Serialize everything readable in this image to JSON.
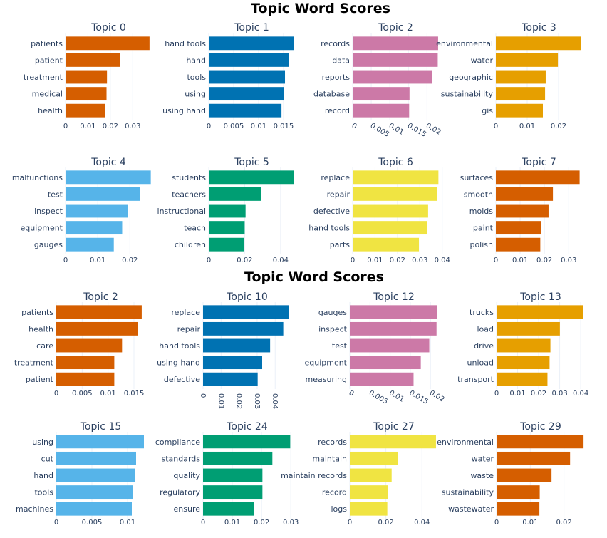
{
  "chart_data": [
    {
      "title": "Topic Word Scores",
      "panels": [
        {
          "type": "bar",
          "orientation": "horizontal",
          "title": "Topic 0",
          "color": "#D55E00",
          "categories": [
            "patients",
            "patient",
            "treatment",
            "medical",
            "health"
          ],
          "values": [
            0.0375,
            0.0245,
            0.0185,
            0.0183,
            0.0175
          ],
          "xlim": [
            0,
            0.0385
          ],
          "ticks": [
            0,
            0.01,
            0.02,
            0.03
          ],
          "tick_labels": [
            "0",
            "0.01",
            "0.02",
            "0.03"
          ],
          "tick_rotation": 0
        },
        {
          "type": "bar",
          "orientation": "horizontal",
          "title": "Topic 1",
          "color": "#0072B2",
          "categories": [
            "hand tools",
            "hand",
            "tools",
            "using",
            "using hand"
          ],
          "values": [
            0.0171,
            0.0161,
            0.0153,
            0.0151,
            0.0146
          ],
          "xlim": [
            0,
            0.0173
          ],
          "ticks": [
            0,
            0.005,
            0.01,
            0.015
          ],
          "tick_labels": [
            "0",
            "0.005",
            "0.01",
            "0.015"
          ],
          "tick_rotation": 0
        },
        {
          "type": "bar",
          "orientation": "horizontal",
          "title": "Topic 2",
          "color": "#CC79A7",
          "categories": [
            "records",
            "data",
            "reports",
            "database",
            "record"
          ],
          "values": [
            0.023,
            0.0229,
            0.0213,
            0.0153,
            0.0152
          ],
          "xlim": [
            0,
            0.0232
          ],
          "ticks": [
            0,
            0.005,
            0.01,
            0.015,
            0.02
          ],
          "tick_labels": [
            "0",
            "0.005",
            "0.01",
            "0.015",
            "0.02"
          ],
          "tick_rotation": 30
        },
        {
          "type": "bar",
          "orientation": "horizontal",
          "title": "Topic 3",
          "color": "#E69F00",
          "categories": [
            "environmental",
            "water",
            "geographic",
            "sustainability",
            "gis"
          ],
          "values": [
            0.0272,
            0.0198,
            0.0159,
            0.0157,
            0.015
          ],
          "xlim": [
            0,
            0.0275
          ],
          "ticks": [
            0,
            0.01,
            0.02
          ],
          "tick_labels": [
            "0",
            "0.01",
            "0.02"
          ],
          "tick_rotation": 0
        },
        {
          "type": "bar",
          "orientation": "horizontal",
          "title": "Topic 4",
          "color": "#56B4E9",
          "categories": [
            "malfunctions",
            "test",
            "inspect",
            "equipment",
            "gauges"
          ],
          "values": [
            0.0265,
            0.0232,
            0.0193,
            0.0176,
            0.015
          ],
          "xlim": [
            0,
            0.0268
          ],
          "ticks": [
            0,
            0.01,
            0.02
          ],
          "tick_labels": [
            "0",
            "0.01",
            "0.02"
          ],
          "tick_rotation": 0
        },
        {
          "type": "bar",
          "orientation": "horizontal",
          "title": "Topic 5",
          "color": "#009E73",
          "categories": [
            "students",
            "teachers",
            "instructional",
            "teach",
            "children"
          ],
          "values": [
            0.0475,
            0.0293,
            0.0205,
            0.02,
            0.0195
          ],
          "xlim": [
            0,
            0.048
          ],
          "ticks": [
            0,
            0.02,
            0.04
          ],
          "tick_labels": [
            "0",
            "0.02",
            "0.04"
          ],
          "tick_rotation": 0
        },
        {
          "type": "bar",
          "orientation": "horizontal",
          "title": "Topic 6",
          "color": "#F0E442",
          "categories": [
            "replace",
            "repair",
            "defective",
            "hand tools",
            "parts"
          ],
          "values": [
            0.0383,
            0.0378,
            0.0337,
            0.0334,
            0.0296
          ],
          "xlim": [
            0,
            0.0385
          ],
          "ticks": [
            0,
            0.01,
            0.02,
            0.03,
            0.04
          ],
          "tick_labels": [
            "0",
            "0.01",
            "0.02",
            "0.03",
            "0.04"
          ],
          "tick_rotation": 0
        },
        {
          "type": "bar",
          "orientation": "horizontal",
          "title": "Topic 7",
          "color": "#D55E00",
          "categories": [
            "surfaces",
            "smooth",
            "molds",
            "paint",
            "polish"
          ],
          "values": [
            0.0345,
            0.0235,
            0.0217,
            0.0187,
            0.0183
          ],
          "xlim": [
            0,
            0.0355
          ],
          "ticks": [
            0,
            0.01,
            0.02,
            0.03
          ],
          "tick_labels": [
            "0",
            "0.01",
            "0.02",
            "0.03"
          ],
          "tick_rotation": 0
        }
      ]
    },
    {
      "title": "Topic Word Scores",
      "panels": [
        {
          "type": "bar",
          "orientation": "horizontal",
          "title": "Topic 2",
          "color": "#D55E00",
          "categories": [
            "patients",
            "health",
            "care",
            "treatment",
            "patient"
          ],
          "values": [
            0.0165,
            0.0157,
            0.0127,
            0.0112,
            0.0112
          ],
          "xlim": [
            0,
            0.0172
          ],
          "ticks": [
            0,
            0.005,
            0.01,
            0.015
          ],
          "tick_labels": [
            "0",
            "0.005",
            "0.01",
            "0.015"
          ],
          "tick_rotation": 0
        },
        {
          "type": "bar",
          "orientation": "horizontal",
          "title": "Topic 10",
          "color": "#0072B2",
          "categories": [
            "replace",
            "repair",
            "hand tools",
            "using hand",
            "defective"
          ],
          "values": [
            0.0478,
            0.0445,
            0.0372,
            0.0328,
            0.0303
          ],
          "xlim": [
            0,
            0.049
          ],
          "ticks": [
            0,
            0.01,
            0.02,
            0.03,
            0.04
          ],
          "tick_labels": [
            "0",
            "0.01",
            "0.02",
            "0.03",
            "0.04"
          ],
          "tick_rotation": 90
        },
        {
          "type": "bar",
          "orientation": "horizontal",
          "title": "Topic 12",
          "color": "#CC79A7",
          "categories": [
            "gauges",
            "inspect",
            "test",
            "equipment",
            "measuring"
          ],
          "values": [
            0.0217,
            0.0215,
            0.0197,
            0.0176,
            0.0158
          ],
          "xlim": [
            0,
            0.0219
          ],
          "ticks": [
            0,
            0.005,
            0.01,
            0.015,
            0.02
          ],
          "tick_labels": [
            "0",
            "0.005",
            "0.01",
            "0.015",
            "0.02"
          ],
          "tick_rotation": 30
        },
        {
          "type": "bar",
          "orientation": "horizontal",
          "title": "Topic 13",
          "color": "#E69F00",
          "categories": [
            "trucks",
            "load",
            "drive",
            "unload",
            "transport"
          ],
          "values": [
            0.0412,
            0.0301,
            0.0256,
            0.0252,
            0.0242
          ],
          "xlim": [
            0,
            0.042
          ],
          "ticks": [
            0,
            0.01,
            0.02,
            0.03,
            0.04
          ],
          "tick_labels": [
            "0",
            "0.01",
            "0.02",
            "0.03",
            "0.04"
          ],
          "tick_rotation": 0
        },
        {
          "type": "bar",
          "orientation": "horizontal",
          "title": "Topic 15",
          "color": "#56B4E9",
          "categories": [
            "using",
            "cut",
            "hand",
            "tools",
            "machines"
          ],
          "values": [
            0.0123,
            0.0112,
            0.0111,
            0.0108,
            0.0106
          ],
          "xlim": [
            0,
            0.0125
          ],
          "ticks": [
            0,
            0.005,
            0.01
          ],
          "tick_labels": [
            "0",
            "0.005",
            "0.01"
          ],
          "tick_rotation": 0
        },
        {
          "type": "bar",
          "orientation": "horizontal",
          "title": "Topic 24",
          "color": "#009E73",
          "categories": [
            "compliance",
            "standards",
            "quality",
            "regulatory",
            "ensure"
          ],
          "values": [
            0.0298,
            0.0237,
            0.0203,
            0.0203,
            0.0175
          ],
          "xlim": [
            0,
            0.0302
          ],
          "ticks": [
            0,
            0.01,
            0.02,
            0.03
          ],
          "tick_labels": [
            "0",
            "0.01",
            "0.02",
            "0.03"
          ],
          "tick_rotation": 0
        },
        {
          "type": "bar",
          "orientation": "horizontal",
          "title": "Topic 27",
          "color": "#F0E442",
          "categories": [
            "records",
            "maintain",
            "maintain records",
            "record",
            "logs"
          ],
          "values": [
            0.0478,
            0.0265,
            0.0232,
            0.0213,
            0.0208
          ],
          "xlim": [
            0,
            0.049
          ],
          "ticks": [
            0,
            0.02,
            0.04
          ],
          "tick_labels": [
            "0",
            "0.02",
            "0.04"
          ],
          "tick_rotation": 0
        },
        {
          "type": "bar",
          "orientation": "horizontal",
          "title": "Topic 29",
          "color": "#D55E00",
          "categories": [
            "environmental",
            "water",
            "waste",
            "sustainability",
            "wastewater"
          ],
          "values": [
            0.0258,
            0.0218,
            0.0163,
            0.0128,
            0.0127
          ],
          "xlim": [
            0,
            0.0262
          ],
          "ticks": [
            0,
            0.01,
            0.02
          ],
          "tick_labels": [
            "0",
            "0.01",
            "0.02"
          ],
          "tick_rotation": 0
        }
      ]
    }
  ]
}
